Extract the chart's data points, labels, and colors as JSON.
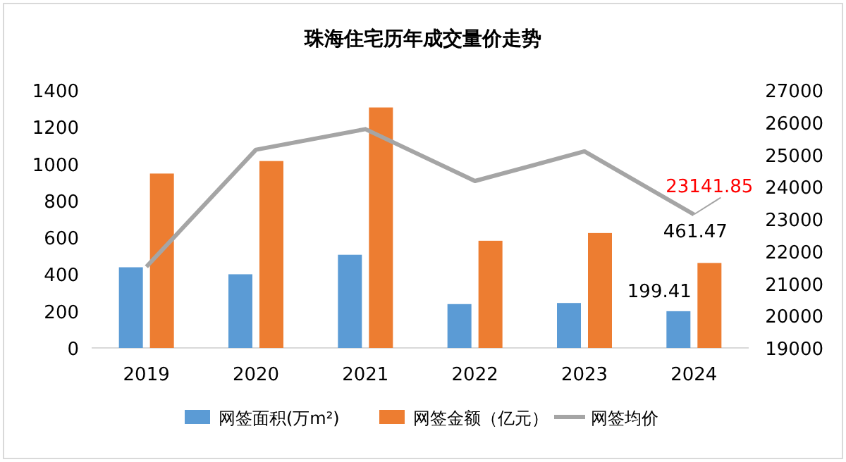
{
  "chart_data": {
    "type": "bar",
    "title": "珠海住宅历年成交量价走势",
    "categories": [
      "2019",
      "2020",
      "2021",
      "2022",
      "2023",
      "2024"
    ],
    "series": [
      {
        "name": "网签面积(万m²)",
        "color": "#5b9bd5",
        "values": [
          438,
          400,
          506,
          238,
          244,
          199.41
        ],
        "value_labels": [
          null,
          null,
          null,
          null,
          null,
          "199.41"
        ]
      },
      {
        "name": "网签金额（亿元）",
        "color": "#ed7d31",
        "values": [
          947,
          1015,
          1306,
          582,
          624,
          461.47
        ],
        "value_labels": [
          null,
          null,
          null,
          null,
          null,
          "461.47"
        ]
      },
      {
        "name": "网签均价",
        "type": "line",
        "axis": "y2",
        "color": "#a5a5a5",
        "values": [
          21520,
          25150,
          25790,
          24180,
          25100,
          23141.85
        ],
        "value_labels": [
          null,
          null,
          null,
          null,
          null,
          "23141.85"
        ]
      }
    ],
    "ylim": [
      0,
      1400
    ],
    "yticks": [
      0,
      200,
      400,
      600,
      800,
      1000,
      1200,
      1400
    ],
    "y2lim": [
      19000,
      27000
    ],
    "y2ticks": [
      19000,
      20000,
      21000,
      22000,
      23000,
      24000,
      25000,
      26000,
      27000
    ],
    "legend": "bottom",
    "grid": false,
    "marker": "none"
  }
}
